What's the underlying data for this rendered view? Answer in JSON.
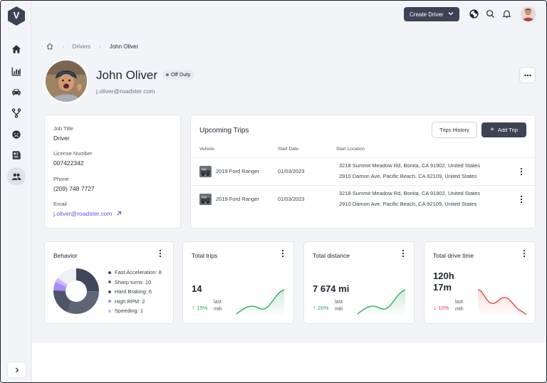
{
  "app": {
    "logo_letter": "V"
  },
  "sidebar": {
    "items": [
      {
        "icon": "home-icon"
      },
      {
        "icon": "chart-icon"
      },
      {
        "icon": "car-icon"
      },
      {
        "icon": "route-icon"
      },
      {
        "icon": "sad-face-icon"
      },
      {
        "icon": "document-icon"
      },
      {
        "icon": "users-icon",
        "active": true
      }
    ],
    "collapse_icon": "chevron-right-icon"
  },
  "topbar": {
    "create_label": "Create Driver",
    "icons": [
      "support-icon",
      "search-icon",
      "bell-icon"
    ]
  },
  "breadcrumb": {
    "home_icon": "home-icon",
    "items": [
      "Drivers",
      "John Oliver"
    ]
  },
  "profile": {
    "name": "John Oliver",
    "status": "Off Duty",
    "email": "j.oliver@roadster.com"
  },
  "info": {
    "job_title_label": "Job Title",
    "job_title": "Driver",
    "license_label": "License Number",
    "license": "007422342",
    "phone_label": "Phone",
    "phone": "(209) 748 7727",
    "email_label": "Email",
    "email": "j.oliver@roadster.com"
  },
  "trips": {
    "title": "Upcoming Trips",
    "history_label": "Trips History",
    "add_label": "Add Trip",
    "columns": [
      "Vehicle",
      "Start Date",
      "Start Location"
    ],
    "rows": [
      {
        "vehicle": "2019 Ford Ranger",
        "date": "01/03/2023",
        "loc1": "3218 Summit Meadow Rd, Bonita, CA 91902, United States",
        "loc2": "2910 Damon Ave, Pacific Beach, CA 92109, United States"
      },
      {
        "vehicle": "2019 Ford Ranger",
        "date": "01/03/2023",
        "loc1": "3218 Summit Meadow Rd, Bonita, CA 91902, United States",
        "loc2": "2910 Damon Ave, Pacific Beach, CA 92109, United States"
      }
    ]
  },
  "behavior": {
    "title": "Behavior",
    "items": [
      {
        "label": "Fast Acceleration: 8",
        "value": 8,
        "color": "#3f4859"
      },
      {
        "label": "Sharp turns: 10",
        "value": 10,
        "color": "#5d6577"
      },
      {
        "label": "Hard Braking: 6",
        "value": 6,
        "color": "#4d5568"
      },
      {
        "label": "High RPM: 2",
        "value": 2,
        "color": "#a78bfa"
      },
      {
        "label": "Speeding: 1",
        "value": 1,
        "color": "#cbb8fb"
      }
    ],
    "remainder_color": "#eef0f3"
  },
  "stats": [
    {
      "title": "Total trips",
      "value": "14",
      "change": "15%",
      "direction": "up",
      "change_label": "last mth",
      "color": "#22a55a"
    },
    {
      "title": "Total distance",
      "value": "7 674 mi",
      "change": "20%",
      "direction": "up",
      "change_label": "last mth",
      "color": "#22a55a"
    },
    {
      "title": "Total drive time",
      "value": "120h 17m",
      "value_line1": "120h",
      "value_line2": "17m",
      "change": "10%",
      "direction": "down",
      "change_label": "last mth",
      "color": "#dc3b3b"
    }
  ]
}
